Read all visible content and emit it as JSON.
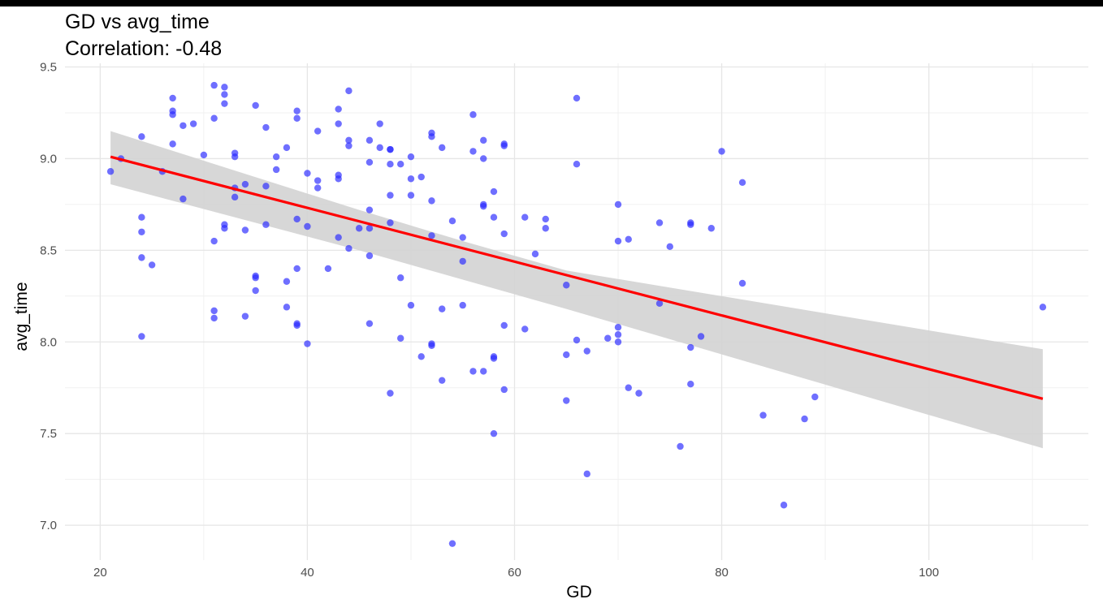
{
  "chart_data": {
    "type": "scatter",
    "title": "GD vs avg_time",
    "subtitle": "Correlation: -0.48",
    "xlabel": "GD",
    "ylabel": "avg_time",
    "xlim": [
      16.6,
      115.4
    ],
    "ylim": [
      6.81,
      9.52
    ],
    "x_ticks": [
      20,
      40,
      60,
      80,
      100
    ],
    "y_ticks": [
      7.0,
      7.5,
      8.0,
      8.5,
      9.0,
      9.5
    ],
    "x_tick_labels": [
      "20",
      "40",
      "60",
      "80",
      "100"
    ],
    "y_tick_labels": [
      "7.0",
      "7.5",
      "8.0",
      "8.5",
      "9.0",
      "9.5"
    ],
    "grid": true,
    "legend": "none",
    "point_color": "#2b2bff",
    "trend_color": "#ff0000",
    "band_color": "#d3d3d3",
    "series": [
      {
        "points": [
          [
            21,
            8.93
          ],
          [
            22,
            9.0
          ],
          [
            24,
            9.12
          ],
          [
            24,
            8.68
          ],
          [
            24,
            8.6
          ],
          [
            24,
            8.46
          ],
          [
            24,
            8.03
          ],
          [
            25,
            8.42
          ],
          [
            26,
            8.93
          ],
          [
            27,
            9.33
          ],
          [
            27,
            9.26
          ],
          [
            27,
            9.24
          ],
          [
            27,
            9.08
          ],
          [
            28,
            9.18
          ],
          [
            28,
            8.78
          ],
          [
            29,
            9.19
          ],
          [
            30,
            9.02
          ],
          [
            31,
            9.4
          ],
          [
            31,
            9.22
          ],
          [
            31,
            8.55
          ],
          [
            31,
            8.17
          ],
          [
            31,
            8.13
          ],
          [
            32,
            9.39
          ],
          [
            32,
            9.35
          ],
          [
            32,
            9.3
          ],
          [
            32,
            8.64
          ],
          [
            32,
            8.62
          ],
          [
            33,
            9.03
          ],
          [
            33,
            9.01
          ],
          [
            33,
            8.84
          ],
          [
            33,
            8.79
          ],
          [
            34,
            8.86
          ],
          [
            34,
            8.61
          ],
          [
            34,
            8.14
          ],
          [
            35,
            9.29
          ],
          [
            35,
            8.36
          ],
          [
            35,
            8.35
          ],
          [
            35,
            8.28
          ],
          [
            36,
            9.17
          ],
          [
            36,
            8.85
          ],
          [
            36,
            8.64
          ],
          [
            37,
            9.01
          ],
          [
            37,
            8.94
          ],
          [
            38,
            9.06
          ],
          [
            38,
            8.33
          ],
          [
            38,
            8.19
          ],
          [
            39,
            9.26
          ],
          [
            39,
            9.22
          ],
          [
            39,
            8.67
          ],
          [
            39,
            8.4
          ],
          [
            39,
            8.1
          ],
          [
            39,
            8.09
          ],
          [
            40,
            8.92
          ],
          [
            40,
            8.63
          ],
          [
            40,
            7.99
          ],
          [
            41,
            9.15
          ],
          [
            41,
            8.88
          ],
          [
            41,
            8.84
          ],
          [
            42,
            8.4
          ],
          [
            43,
            9.27
          ],
          [
            43,
            9.19
          ],
          [
            43,
            8.91
          ],
          [
            43,
            8.89
          ],
          [
            43,
            8.57
          ],
          [
            44,
            9.37
          ],
          [
            44,
            9.1
          ],
          [
            44,
            9.07
          ],
          [
            44,
            8.51
          ],
          [
            45,
            8.62
          ],
          [
            46,
            9.1
          ],
          [
            46,
            8.98
          ],
          [
            46,
            8.72
          ],
          [
            46,
            8.62
          ],
          [
            46,
            8.47
          ],
          [
            46,
            8.1
          ],
          [
            47,
            9.19
          ],
          [
            47,
            9.06
          ],
          [
            48,
            9.05
          ],
          [
            48,
            9.05
          ],
          [
            48,
            8.97
          ],
          [
            48,
            8.8
          ],
          [
            48,
            8.65
          ],
          [
            48,
            7.72
          ],
          [
            49,
            8.97
          ],
          [
            49,
            8.35
          ],
          [
            49,
            8.02
          ],
          [
            50,
            9.01
          ],
          [
            50,
            8.89
          ],
          [
            50,
            8.8
          ],
          [
            50,
            8.2
          ],
          [
            51,
            8.9
          ],
          [
            51,
            7.92
          ],
          [
            52,
            9.14
          ],
          [
            52,
            9.12
          ],
          [
            52,
            8.77
          ],
          [
            52,
            8.58
          ],
          [
            52,
            7.99
          ],
          [
            52,
            7.98
          ],
          [
            53,
            9.06
          ],
          [
            53,
            8.18
          ],
          [
            53,
            7.79
          ],
          [
            54,
            8.66
          ],
          [
            54,
            6.9
          ],
          [
            55,
            8.57
          ],
          [
            55,
            8.44
          ],
          [
            55,
            8.2
          ],
          [
            56,
            9.24
          ],
          [
            56,
            9.04
          ],
          [
            56,
            7.84
          ],
          [
            57,
            9.1
          ],
          [
            57,
            9.0
          ],
          [
            57,
            8.75
          ],
          [
            57,
            8.74
          ],
          [
            57,
            7.84
          ],
          [
            58,
            8.82
          ],
          [
            58,
            8.68
          ],
          [
            58,
            7.92
          ],
          [
            58,
            7.91
          ],
          [
            58,
            7.5
          ],
          [
            59,
            9.08
          ],
          [
            59,
            9.07
          ],
          [
            59,
            8.59
          ],
          [
            59,
            8.09
          ],
          [
            59,
            7.74
          ],
          [
            61,
            8.68
          ],
          [
            61,
            8.07
          ],
          [
            62,
            8.48
          ],
          [
            63,
            8.67
          ],
          [
            63,
            8.62
          ],
          [
            65,
            8.31
          ],
          [
            65,
            7.93
          ],
          [
            65,
            7.68
          ],
          [
            66,
            9.33
          ],
          [
            66,
            8.97
          ],
          [
            66,
            8.01
          ],
          [
            67,
            7.95
          ],
          [
            67,
            7.28
          ],
          [
            69,
            8.02
          ],
          [
            70,
            8.75
          ],
          [
            70,
            8.55
          ],
          [
            70,
            8.08
          ],
          [
            70,
            8.04
          ],
          [
            70,
            8.0
          ],
          [
            71,
            8.56
          ],
          [
            71,
            7.75
          ],
          [
            72,
            7.72
          ],
          [
            74,
            8.65
          ],
          [
            74,
            8.21
          ],
          [
            75,
            8.52
          ],
          [
            76,
            7.43
          ],
          [
            77,
            8.65
          ],
          [
            77,
            8.64
          ],
          [
            77,
            7.97
          ],
          [
            77,
            7.77
          ],
          [
            78,
            8.03
          ],
          [
            79,
            8.62
          ],
          [
            80,
            9.04
          ],
          [
            82,
            8.87
          ],
          [
            82,
            8.32
          ],
          [
            84,
            7.6
          ],
          [
            86,
            7.11
          ],
          [
            88,
            7.58
          ],
          [
            89,
            7.7
          ],
          [
            111,
            8.19
          ]
        ]
      }
    ],
    "trend_line": {
      "x": [
        21,
        111
      ],
      "y": [
        9.01,
        7.69
      ]
    },
    "confidence_band": {
      "x": [
        21,
        45,
        55,
        65,
        111
      ],
      "upper": [
        9.15,
        8.72,
        8.55,
        8.39,
        7.96
      ],
      "lower": [
        8.86,
        8.5,
        8.34,
        8.18,
        7.42
      ]
    }
  }
}
